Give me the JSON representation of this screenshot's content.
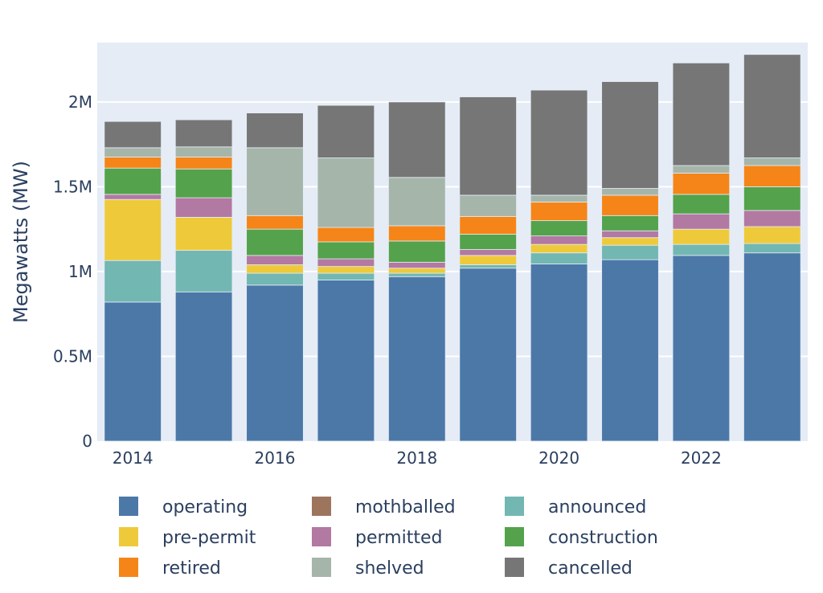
{
  "chart_data": {
    "type": "bar",
    "stacked": true,
    "ylabel": "Megawatts (MW)",
    "xlabel": "",
    "ylim": [
      0,
      2350000
    ],
    "y_ticks": [
      0,
      500000,
      1000000,
      1500000,
      2000000
    ],
    "y_tick_labels": [
      "0",
      "0.5M",
      "1M",
      "1.5M",
      "2M"
    ],
    "x_tick_labels": [
      "2014",
      "2016",
      "2018",
      "2020",
      "2022"
    ],
    "x_tick_categories": [
      "2014",
      "2016",
      "2018",
      "2020",
      "2022"
    ],
    "grid": true,
    "legend": "bottom",
    "background": "#e5ecf6",
    "categories": [
      "2014",
      "2015",
      "2016",
      "2017",
      "2018",
      "2019",
      "2020",
      "2021",
      "2022",
      "2023"
    ],
    "series": [
      {
        "name": "operating",
        "color": "#4c78a8",
        "values": [
          820000,
          880000,
          920000,
          950000,
          970000,
          1020000,
          1045000,
          1070000,
          1095000,
          1110000
        ]
      },
      {
        "name": "mothballed",
        "color": "#9d755d",
        "values": [
          0,
          0,
          0,
          0,
          0,
          0,
          0,
          0,
          0,
          0
        ]
      },
      {
        "name": "announced",
        "color": "#72b7b2",
        "values": [
          245000,
          245000,
          70000,
          40000,
          20000,
          20000,
          65000,
          85000,
          65000,
          55000
        ]
      },
      {
        "name": "pre-permit",
        "color": "#eeca3b",
        "values": [
          360000,
          195000,
          50000,
          40000,
          30000,
          55000,
          50000,
          45000,
          90000,
          100000
        ]
      },
      {
        "name": "permitted",
        "color": "#b279a2",
        "values": [
          30000,
          115000,
          55000,
          45000,
          35000,
          35000,
          50000,
          40000,
          90000,
          95000
        ]
      },
      {
        "name": "construction",
        "color": "#54a24b",
        "values": [
          155000,
          170000,
          155000,
          100000,
          125000,
          90000,
          90000,
          90000,
          115000,
          140000
        ]
      },
      {
        "name": "retired",
        "color": "#f58518",
        "values": [
          65000,
          70000,
          80000,
          85000,
          90000,
          105000,
          110000,
          120000,
          125000,
          125000
        ]
      },
      {
        "name": "shelved",
        "color": "#a6b5a9",
        "values": [
          55000,
          60000,
          400000,
          410000,
          285000,
          125000,
          40000,
          40000,
          45000,
          45000
        ]
      },
      {
        "name": "cancelled",
        "color": "#767676",
        "values": [
          155000,
          160000,
          205000,
          310000,
          445000,
          580000,
          620000,
          630000,
          605000,
          610000
        ]
      }
    ]
  }
}
